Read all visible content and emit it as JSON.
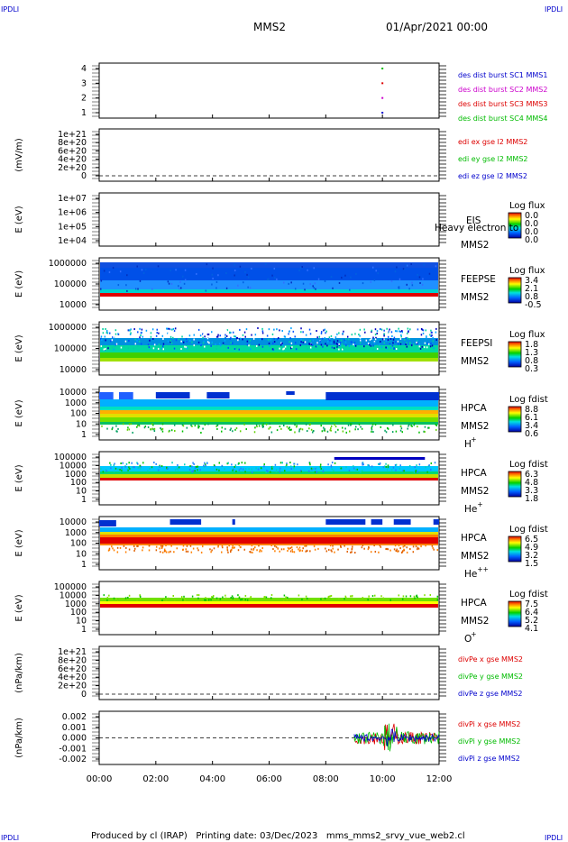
{
  "corner_tags": {
    "tl": "IPDLI",
    "tr": "IPDLI",
    "bl": "IPDLI",
    "br": "IPDLI"
  },
  "header": {
    "spacecraft": "MMS2",
    "date": "01/Apr/2021 00:00"
  },
  "footer": {
    "text": "Produced by cl (IRAP)   Printing date: 03/Dec/2023   mms_mms2_srvy_vue_web2.cl"
  },
  "time_axis": {
    "ticks": [
      "00:00",
      "02:00",
      "04:00",
      "06:00",
      "08:00",
      "10:00",
      "12:00"
    ],
    "range_hours": [
      0,
      12
    ]
  },
  "colors": {
    "blue": "#0000cc",
    "green": "#00bb00",
    "red": "#dd0000",
    "magenta": "#cc00cc"
  },
  "chart_data": [
    {
      "type": "scatter",
      "panel": "burst",
      "yticks": [
        "4",
        "3",
        "2",
        "1"
      ],
      "legend": [
        {
          "text": "des dist burst SC1 MMS1",
          "color": "#0000cc"
        },
        {
          "text": "des dist burst SC2 MMS2",
          "color": "#cc00cc"
        },
        {
          "text": "des dist burst SC3 MMS3",
          "color": "#dd0000"
        },
        {
          "text": "des dist burst SC4 MMS4",
          "color": "#00bb00"
        }
      ],
      "points": [
        {
          "x": 10.0,
          "y": 4
        },
        {
          "x": 10.0,
          "y": 3
        },
        {
          "x": 10.0,
          "y": 2
        },
        {
          "x": 10.0,
          "y": 1
        }
      ]
    },
    {
      "type": "line",
      "panel": "edi",
      "ylabel": "(mV/m)",
      "yticks": [
        "1e+21",
        "8e+20",
        "6e+20",
        "4e+20",
        "2e+20",
        "0"
      ],
      "legend": [
        {
          "text": "edi ex gse l2 MMS2",
          "color": "#dd0000"
        },
        {
          "text": "edi ey gse l2 MMS2",
          "color": "#00bb00"
        },
        {
          "text": "edi ez gse l2 MMS2",
          "color": "#0000cc"
        }
      ]
    },
    {
      "type": "heatmap",
      "panel": "eis",
      "ylabel": "E (eV)",
      "yticks": [
        "1e+07",
        "1e+06",
        "1e+05",
        "1e+04"
      ],
      "labels": [
        "EIS",
        "MMS2"
      ],
      "overlay_text": "Heavy electron to",
      "colorbar_title": "Log flux",
      "colorbar_ticks": [
        "0.0",
        "0.0",
        "0.0",
        "0.0"
      ]
    },
    {
      "type": "heatmap",
      "panel": "feepse",
      "ylabel": "E (eV)",
      "yticks": [
        "1000000",
        "100000",
        "10000"
      ],
      "labels": [
        "FEEPSE",
        "MMS2"
      ],
      "colorbar_title": "Log flux",
      "colorbar_ticks": [
        "3.4",
        "2.1",
        "0.8",
        "-0.5"
      ]
    },
    {
      "type": "heatmap",
      "panel": "feepsi",
      "ylabel": "E (eV)",
      "yticks": [
        "1000000",
        "100000",
        "10000"
      ],
      "labels": [
        "FEEPSI",
        "MMS2"
      ],
      "colorbar_title": "Log flux",
      "colorbar_ticks": [
        "1.8",
        "1.3",
        "0.8",
        "0.3"
      ]
    },
    {
      "type": "heatmap",
      "panel": "hpca_h",
      "ylabel": "E (eV)",
      "yticks": [
        "10000",
        "1000",
        "100",
        "10",
        "1"
      ],
      "labels": [
        "HPCA",
        "MMS2",
        "H",
        "+"
      ],
      "colorbar_title": "Log fdist",
      "colorbar_ticks": [
        "8.8",
        "6.1",
        "3.4",
        "0.6"
      ]
    },
    {
      "type": "heatmap",
      "panel": "hpca_he",
      "ylabel": "E (eV)",
      "yticks": [
        "100000",
        "10000",
        "1000",
        "100",
        "10",
        "1"
      ],
      "labels": [
        "HPCA",
        "MMS2",
        "He",
        "+"
      ],
      "colorbar_title": "Log fdist",
      "colorbar_ticks": [
        "6.3",
        "4.8",
        "3.3",
        "1.8"
      ]
    },
    {
      "type": "heatmap",
      "panel": "hpca_hepp",
      "ylabel": "E (eV)",
      "yticks": [
        "10000",
        "1000",
        "100",
        "10",
        "1"
      ],
      "labels": [
        "HPCA",
        "MMS2",
        "He",
        "++"
      ],
      "colorbar_title": "Log fdist",
      "colorbar_ticks": [
        "6.5",
        "4.9",
        "3.2",
        "1.5"
      ]
    },
    {
      "type": "heatmap",
      "panel": "hpca_o",
      "ylabel": "E (eV)",
      "yticks": [
        "100000",
        "10000",
        "1000",
        "100",
        "10",
        "1"
      ],
      "labels": [
        "HPCA",
        "MMS2",
        "O",
        "+"
      ],
      "colorbar_title": "Log fdist",
      "colorbar_ticks": [
        "7.5",
        "6.4",
        "5.2",
        "4.1"
      ]
    },
    {
      "type": "line",
      "panel": "divpe",
      "ylabel": "(nPa/km)",
      "yticks": [
        "1e+21",
        "8e+20",
        "6e+20",
        "4e+20",
        "2e+20",
        "0"
      ],
      "legend": [
        {
          "text": "divPe x gse MMS2",
          "color": "#dd0000"
        },
        {
          "text": "divPe y gse MMS2",
          "color": "#00bb00"
        },
        {
          "text": "divPe z gse MMS2",
          "color": "#0000cc"
        }
      ]
    },
    {
      "type": "line",
      "panel": "divpi",
      "ylabel": "(nPa/km)",
      "yticks": [
        "0.002",
        "0.001",
        "0.000",
        "-0.001",
        "-0.002"
      ],
      "ylim": [
        -0.0025,
        0.0025
      ],
      "legend": [
        {
          "text": "divPi x gse MMS2",
          "color": "#dd0000"
        },
        {
          "text": "divPi y gse MMS2",
          "color": "#00bb00"
        },
        {
          "text": "divPi z gse MMS2",
          "color": "#0000cc"
        }
      ],
      "series_start_hours": 9.0
    }
  ]
}
